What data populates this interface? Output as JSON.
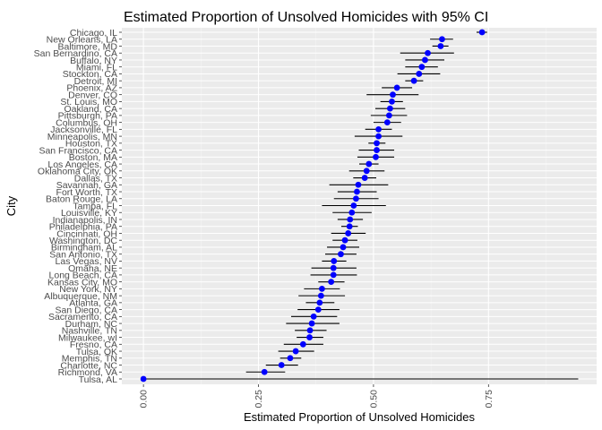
{
  "chart_data": {
    "type": "scatter",
    "title": "Estimated Proportion of Unsolved Homicides with 95% CI",
    "xlabel": "Estimated Proportion of Unsolved Homicides",
    "ylabel": "City",
    "xlim": [
      -0.047,
      0.985
    ],
    "x_ticks": [
      0.0,
      0.25,
      0.5,
      0.75
    ],
    "x_tick_labels": [
      "0.00",
      "0.25",
      "0.50",
      "0.75"
    ],
    "grid": true,
    "point_color": "#0000ff",
    "errorbar_color": "#000000",
    "panel_color": "#ebebeb",
    "cities": [
      {
        "name": "Chicago, IL",
        "estimate": 0.736,
        "lower": 0.724,
        "upper": 0.747
      },
      {
        "name": "New Orleans, LA",
        "estimate": 0.649,
        "lower": 0.623,
        "upper": 0.673
      },
      {
        "name": "Baltimore, MD",
        "estimate": 0.646,
        "lower": 0.628,
        "upper": 0.663
      },
      {
        "name": "San Bernardino, CA",
        "estimate": 0.618,
        "lower": 0.558,
        "upper": 0.675
      },
      {
        "name": "Buffalo, NY",
        "estimate": 0.612,
        "lower": 0.569,
        "upper": 0.654
      },
      {
        "name": "Miami, FL",
        "estimate": 0.605,
        "lower": 0.569,
        "upper": 0.64
      },
      {
        "name": "Stockton, CA",
        "estimate": 0.599,
        "lower": 0.552,
        "upper": 0.645
      },
      {
        "name": "Detroit, MI",
        "estimate": 0.588,
        "lower": 0.569,
        "upper": 0.608
      },
      {
        "name": "Phoenix, AZ",
        "estimate": 0.551,
        "lower": 0.518,
        "upper": 0.584
      },
      {
        "name": "Denver, CO",
        "estimate": 0.542,
        "lower": 0.485,
        "upper": 0.598
      },
      {
        "name": "St. Louis, MO",
        "estimate": 0.54,
        "lower": 0.515,
        "upper": 0.564
      },
      {
        "name": "Oakland, CA",
        "estimate": 0.536,
        "lower": 0.504,
        "upper": 0.569
      },
      {
        "name": "Pittsburgh, PA",
        "estimate": 0.534,
        "lower": 0.494,
        "upper": 0.573
      },
      {
        "name": "Columbus, OH",
        "estimate": 0.53,
        "lower": 0.5,
        "upper": 0.56
      },
      {
        "name": "Jacksonville, FL",
        "estimate": 0.511,
        "lower": 0.482,
        "upper": 0.54
      },
      {
        "name": "Minneapolis, MN",
        "estimate": 0.511,
        "lower": 0.459,
        "upper": 0.563
      },
      {
        "name": "Houston, TX",
        "estimate": 0.507,
        "lower": 0.489,
        "upper": 0.526
      },
      {
        "name": "San Francisco, CA",
        "estimate": 0.507,
        "lower": 0.468,
        "upper": 0.545
      },
      {
        "name": "Boston, MA",
        "estimate": 0.505,
        "lower": 0.465,
        "upper": 0.545
      },
      {
        "name": "Los Angeles, CA",
        "estimate": 0.49,
        "lower": 0.469,
        "upper": 0.511
      },
      {
        "name": "Oklahoma City, OK",
        "estimate": 0.485,
        "lower": 0.447,
        "upper": 0.524
      },
      {
        "name": "Dallas, TX",
        "estimate": 0.481,
        "lower": 0.456,
        "upper": 0.506
      },
      {
        "name": "Savannah, GA",
        "estimate": 0.467,
        "lower": 0.404,
        "upper": 0.532
      },
      {
        "name": "Fort Worth, TX",
        "estimate": 0.464,
        "lower": 0.422,
        "upper": 0.507
      },
      {
        "name": "Baton Rouge, LA",
        "estimate": 0.462,
        "lower": 0.414,
        "upper": 0.511
      },
      {
        "name": "Tampa, FL",
        "estimate": 0.457,
        "lower": 0.388,
        "upper": 0.527
      },
      {
        "name": "Louisville, KY",
        "estimate": 0.453,
        "lower": 0.411,
        "upper": 0.496
      },
      {
        "name": "Indianapolis, IN",
        "estimate": 0.449,
        "lower": 0.422,
        "upper": 0.477
      },
      {
        "name": "Philadelphia, PA",
        "estimate": 0.448,
        "lower": 0.43,
        "upper": 0.466
      },
      {
        "name": "Cincinnati, OH",
        "estimate": 0.445,
        "lower": 0.408,
        "upper": 0.483
      },
      {
        "name": "Washington, DC",
        "estimate": 0.438,
        "lower": 0.411,
        "upper": 0.465
      },
      {
        "name": "Birmingham, AL",
        "estimate": 0.434,
        "lower": 0.399,
        "upper": 0.469
      },
      {
        "name": "San Antonio, TX",
        "estimate": 0.429,
        "lower": 0.395,
        "upper": 0.463
      },
      {
        "name": "Las Vegas, NV",
        "estimate": 0.414,
        "lower": 0.388,
        "upper": 0.441
      },
      {
        "name": "Omaha, NE",
        "estimate": 0.413,
        "lower": 0.365,
        "upper": 0.463
      },
      {
        "name": "Long Beach, CA",
        "estimate": 0.413,
        "lower": 0.363,
        "upper": 0.464
      },
      {
        "name": "Kansas City, MO",
        "estimate": 0.408,
        "lower": 0.38,
        "upper": 0.437
      },
      {
        "name": "New York, NY",
        "estimate": 0.388,
        "lower": 0.349,
        "upper": 0.427
      },
      {
        "name": "Albuquerque, NM",
        "estimate": 0.386,
        "lower": 0.337,
        "upper": 0.438
      },
      {
        "name": "Atlanta, GA",
        "estimate": 0.383,
        "lower": 0.353,
        "upper": 0.415
      },
      {
        "name": "San Diego, CA",
        "estimate": 0.38,
        "lower": 0.335,
        "upper": 0.426
      },
      {
        "name": "Sacramento, CA",
        "estimate": 0.37,
        "lower": 0.321,
        "upper": 0.421
      },
      {
        "name": "Durham, NC",
        "estimate": 0.366,
        "lower": 0.31,
        "upper": 0.426
      },
      {
        "name": "Nashville, TN",
        "estimate": 0.362,
        "lower": 0.329,
        "upper": 0.398
      },
      {
        "name": "Milwaukee, wI",
        "estimate": 0.361,
        "lower": 0.333,
        "upper": 0.391
      },
      {
        "name": "Fresno, CA",
        "estimate": 0.347,
        "lower": 0.305,
        "upper": 0.391
      },
      {
        "name": "Tulsa, OK",
        "estimate": 0.331,
        "lower": 0.293,
        "upper": 0.371
      },
      {
        "name": "Memphis, TN",
        "estimate": 0.319,
        "lower": 0.297,
        "upper": 0.343
      },
      {
        "name": "Charlotte, NC",
        "estimate": 0.3,
        "lower": 0.266,
        "upper": 0.336
      },
      {
        "name": "Richmond, VA",
        "estimate": 0.263,
        "lower": 0.223,
        "upper": 0.308
      },
      {
        "name": "Tulsa, AL",
        "estimate": 0.0,
        "lower": 0.0,
        "upper": 0.945
      }
    ]
  }
}
